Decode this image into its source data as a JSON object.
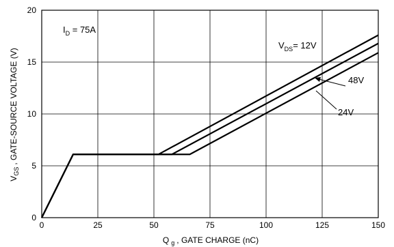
{
  "chart_data": {
    "type": "line",
    "xlabel": "Q g , GATE CHARGE (nC)",
    "xlabel_main": "Q",
    "xlabel_sub": "g",
    "xlabel_rest": ", GATE CHARGE (nC)",
    "ylabel_main": "V",
    "ylabel_sub": "GS",
    "ylabel_rest": ", GATE-SOURCE VOLTAGE (V)",
    "xlim": [
      0,
      150
    ],
    "ylim": [
      0,
      20
    ],
    "xticks": [
      0,
      25,
      50,
      75,
      100,
      125,
      150
    ],
    "yticks": [
      0,
      5,
      10,
      15,
      20
    ],
    "grid": true,
    "annotation_id": {
      "main": "I",
      "sub": "D",
      "rest": " = 75A"
    },
    "series": [
      {
        "label_main": "V",
        "label_sub": "DS",
        "label_rest": "= 12V",
        "points": [
          [
            0,
            0
          ],
          [
            14,
            6.1
          ],
          [
            52,
            6.1
          ],
          [
            150,
            17.6
          ]
        ]
      },
      {
        "label": "48V",
        "points": [
          [
            0,
            0
          ],
          [
            14,
            6.1
          ],
          [
            58,
            6.1
          ],
          [
            150,
            16.8
          ]
        ]
      },
      {
        "label": "24V",
        "points": [
          [
            0,
            0
          ],
          [
            14,
            6.1
          ],
          [
            66,
            6.1
          ],
          [
            150,
            15.9
          ]
        ]
      }
    ]
  }
}
